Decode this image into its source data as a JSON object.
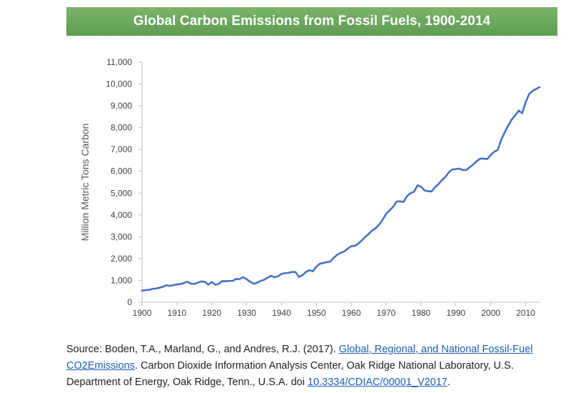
{
  "chart_data": {
    "type": "line",
    "title": "Global Carbon Emissions from Fossil Fuels, 1900-2014",
    "xlabel": "",
    "ylabel": "Million Metric Tons Carbon",
    "xlim": [
      1900,
      2014
    ],
    "ylim": [
      0,
      11000
    ],
    "x_ticks": [
      "1900",
      "1910",
      "1920",
      "1930",
      "1940",
      "1950",
      "1960",
      "1970",
      "1980",
      "1990",
      "2000",
      "2010"
    ],
    "y_ticks": [
      "0",
      "1,000",
      "2,000",
      "3,000",
      "4,000",
      "5,000",
      "6,000",
      "7,000",
      "8,000",
      "9,000",
      "10,000",
      "11,000"
    ],
    "grid": false,
    "legend": "none",
    "line_color": "#4472c4",
    "series": [
      {
        "x": [
          1900,
          1901,
          1902,
          1903,
          1904,
          1905,
          1906,
          1907,
          1908,
          1909,
          1910,
          1911,
          1912,
          1913,
          1914,
          1915,
          1916,
          1917,
          1918,
          1919,
          1920,
          1921,
          1922,
          1923,
          1924,
          1925,
          1926,
          1927,
          1928,
          1929,
          1930,
          1931,
          1932,
          1933,
          1934,
          1935,
          1936,
          1937,
          1938,
          1939,
          1940,
          1941,
          1942,
          1943,
          1944,
          1945,
          1946,
          1947,
          1948,
          1949,
          1950,
          1951,
          1952,
          1953,
          1954,
          1955,
          1956,
          1957,
          1958,
          1959,
          1960,
          1961,
          1962,
          1963,
          1964,
          1965,
          1966,
          1967,
          1968,
          1969,
          1970,
          1971,
          1972,
          1973,
          1974,
          1975,
          1976,
          1977,
          1978,
          1979,
          1980,
          1981,
          1982,
          1983,
          1984,
          1985,
          1986,
          1987,
          1988,
          1989,
          1990,
          1991,
          1992,
          1993,
          1994,
          1995,
          1996,
          1997,
          1998,
          1999,
          2000,
          2001,
          2002,
          2003,
          2004,
          2005,
          2006,
          2007,
          2008,
          2009,
          2010,
          2011,
          2012,
          2013,
          2014
        ],
        "values": [
          534,
          552,
          566,
          617,
          624,
          663,
          707,
          784,
          750,
          785,
          819,
          836,
          879,
          943,
          850,
          838,
          901,
          955,
          936,
          806,
          932,
          803,
          845,
          970,
          963,
          975,
          983,
          1062,
          1065,
          1148,
          1053,
          940,
          847,
          893,
          973,
          1027,
          1130,
          1209,
          1142,
          1192,
          1299,
          1334,
          1342,
          1391,
          1383,
          1160,
          1238,
          1392,
          1469,
          1419,
          1630,
          1768,
          1796,
          1841,
          1865,
          2042,
          2177,
          2270,
          2330,
          2454,
          2569,
          2580,
          2686,
          2833,
          2995,
          3130,
          3288,
          3393,
          3566,
          3780,
          4053,
          4208,
          4376,
          4614,
          4623,
          4596,
          4864,
          4991,
          5068,
          5357,
          5287,
          5126,
          5089,
          5071,
          5268,
          5413,
          5599,
          5742,
          5960,
          6086,
          6098,
          6126,
          6054,
          6064,
          6186,
          6320,
          6465,
          6586,
          6576,
          6561,
          6752,
          6899,
          6980,
          7449,
          7784,
          8096,
          8371,
          8557,
          8783,
          8660,
          9166,
          9540,
          9680,
          9776,
          9855
        ]
      }
    ]
  },
  "source": {
    "prefix": "Source: Boden, T.A., Marland, G., and Andres, R.J. (2017). ",
    "link1": "Global, Regional, and National Fossil-Fuel CO2Emissions",
    "middle": ". Carbon Dioxide Information Analysis Center, Oak Ridge National Laboratory, U.S. Department of Energy, Oak Ridge, Tenn., U.S.A. doi ",
    "link2": "10.3334/CDIAC/00001_V2017",
    "suffix": "."
  }
}
